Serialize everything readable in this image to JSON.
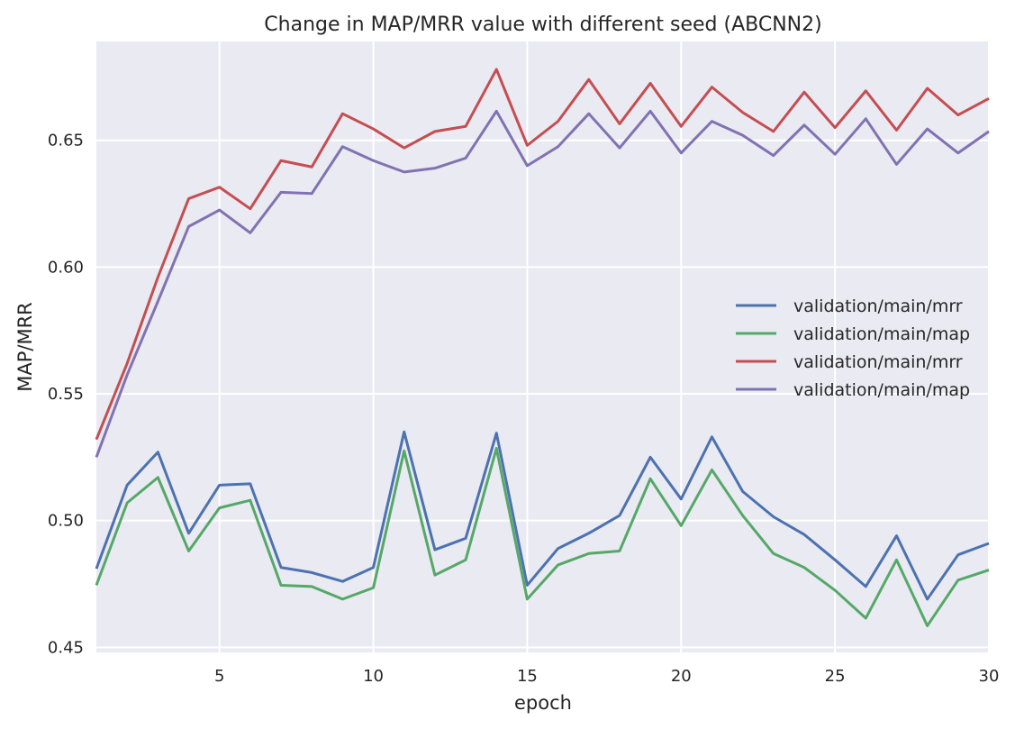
{
  "chart_data": {
    "type": "line",
    "title": "Change in MAP/MRR value with different seed (ABCNN2)",
    "xlabel": "epoch",
    "ylabel": "MAP/MRR",
    "xlim": [
      1,
      30
    ],
    "ylim": [
      0.448,
      0.689
    ],
    "xticks": [
      5,
      10,
      15,
      20,
      25,
      30
    ],
    "xtick_labels": [
      "5",
      "10",
      "15",
      "20",
      "25",
      "30"
    ],
    "yticks": [
      0.45,
      0.5,
      0.55,
      0.6,
      0.65
    ],
    "ytick_labels": [
      "0.45",
      "0.50",
      "0.55",
      "0.60",
      "0.65"
    ],
    "grid": true,
    "legend_position": "right",
    "x": [
      1,
      2,
      3,
      4,
      5,
      6,
      7,
      8,
      9,
      10,
      11,
      12,
      13,
      14,
      15,
      16,
      17,
      18,
      19,
      20,
      21,
      22,
      23,
      24,
      25,
      26,
      27,
      28,
      29,
      30
    ],
    "series": [
      {
        "name": "validation/main/mrr",
        "color": "#4c72b0",
        "values": [
          0.481,
          0.514,
          0.527,
          0.495,
          0.514,
          0.5145,
          0.4815,
          0.4795,
          0.476,
          0.4815,
          0.535,
          0.4885,
          0.493,
          0.5345,
          0.4745,
          0.489,
          0.495,
          0.502,
          0.525,
          0.5085,
          0.533,
          0.5115,
          0.5015,
          0.4945,
          0.4845,
          0.474,
          0.494,
          0.469,
          0.4865,
          0.491
        ]
      },
      {
        "name": "validation/main/map",
        "color": "#55a868",
        "values": [
          0.4745,
          0.507,
          0.517,
          0.488,
          0.505,
          0.508,
          0.4745,
          0.474,
          0.469,
          0.4735,
          0.5275,
          0.4785,
          0.4845,
          0.5285,
          0.469,
          0.4825,
          0.487,
          0.488,
          0.5165,
          0.498,
          0.52,
          0.502,
          0.487,
          0.4815,
          0.4725,
          0.4615,
          0.4845,
          0.4585,
          0.4765,
          0.4805
        ]
      },
      {
        "name": "validation/main/mrr",
        "color": "#c44e52",
        "values": [
          0.532,
          0.562,
          0.596,
          0.627,
          0.6315,
          0.623,
          0.642,
          0.6395,
          0.6605,
          0.6545,
          0.647,
          0.6535,
          0.6555,
          0.678,
          0.648,
          0.6575,
          0.674,
          0.6565,
          0.6725,
          0.6555,
          0.671,
          0.661,
          0.6535,
          0.669,
          0.655,
          0.6695,
          0.654,
          0.6705,
          0.66,
          0.6665
        ]
      },
      {
        "name": "validation/main/map",
        "color": "#8172b2",
        "values": [
          0.525,
          0.5575,
          0.5865,
          0.616,
          0.6225,
          0.6135,
          0.6295,
          0.629,
          0.6475,
          0.642,
          0.6375,
          0.639,
          0.643,
          0.6615,
          0.64,
          0.6475,
          0.6605,
          0.647,
          0.6615,
          0.645,
          0.6575,
          0.652,
          0.644,
          0.656,
          0.6445,
          0.6585,
          0.6405,
          0.6545,
          0.645,
          0.6535
        ]
      }
    ]
  }
}
